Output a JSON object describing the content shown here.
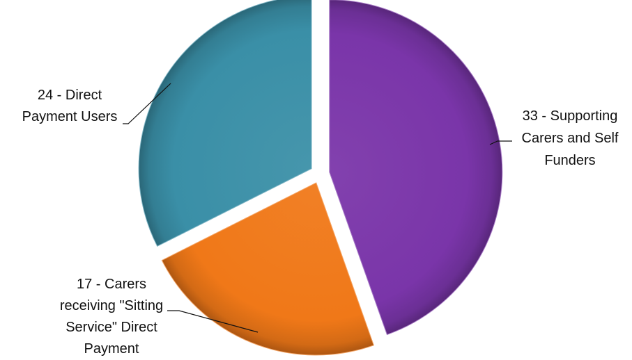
{
  "chart_data": {
    "type": "pie",
    "title": "",
    "exploded": true,
    "slices": [
      {
        "value": 33,
        "label_lines": [
          "33 - Supporting",
          "Carers and Self",
          "Funders"
        ],
        "color": "#7a35a9"
      },
      {
        "value": 17,
        "label_lines": [
          "17 - Carers",
          "receiving \"Sitting",
          "Service\" Direct",
          "Payment"
        ],
        "color": "#f07818"
      },
      {
        "value": 24,
        "label_lines": [
          "24 - Direct",
          "Payment Users"
        ],
        "color": "#3a8fa7"
      }
    ]
  }
}
